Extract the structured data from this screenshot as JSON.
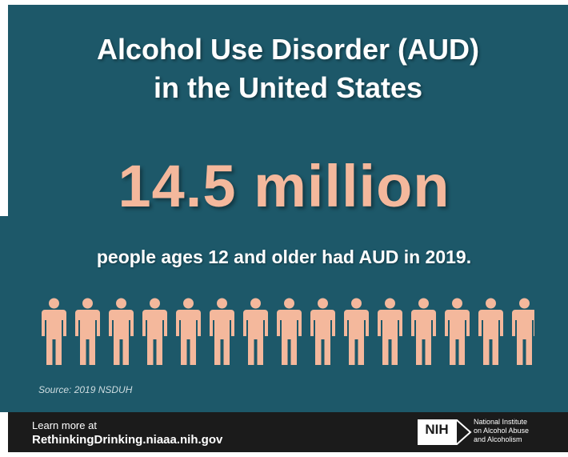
{
  "title": {
    "line1": "Alcohol Use Disorder (AUD)",
    "line2": "in the United States"
  },
  "stat": {
    "value": "14.5 million",
    "description": "people ages 12 and older had AUD in 2019."
  },
  "people_icons": {
    "icon": "person-icon",
    "count": 15,
    "last_partial": true
  },
  "source": "Source: 2019 NSDUH",
  "footer": {
    "learn_more": "Learn more at",
    "url": "RethinkingDrinking.niaaa.nih.gov",
    "logo_text": "NIH",
    "institute": [
      "National Institute",
      "on Alcohol Abuse",
      "and Alcoholism"
    ]
  },
  "colors": {
    "background": "#1d5869",
    "accent": "#f4b89c",
    "footer": "#1b1b1b",
    "text": "#ffffff"
  }
}
